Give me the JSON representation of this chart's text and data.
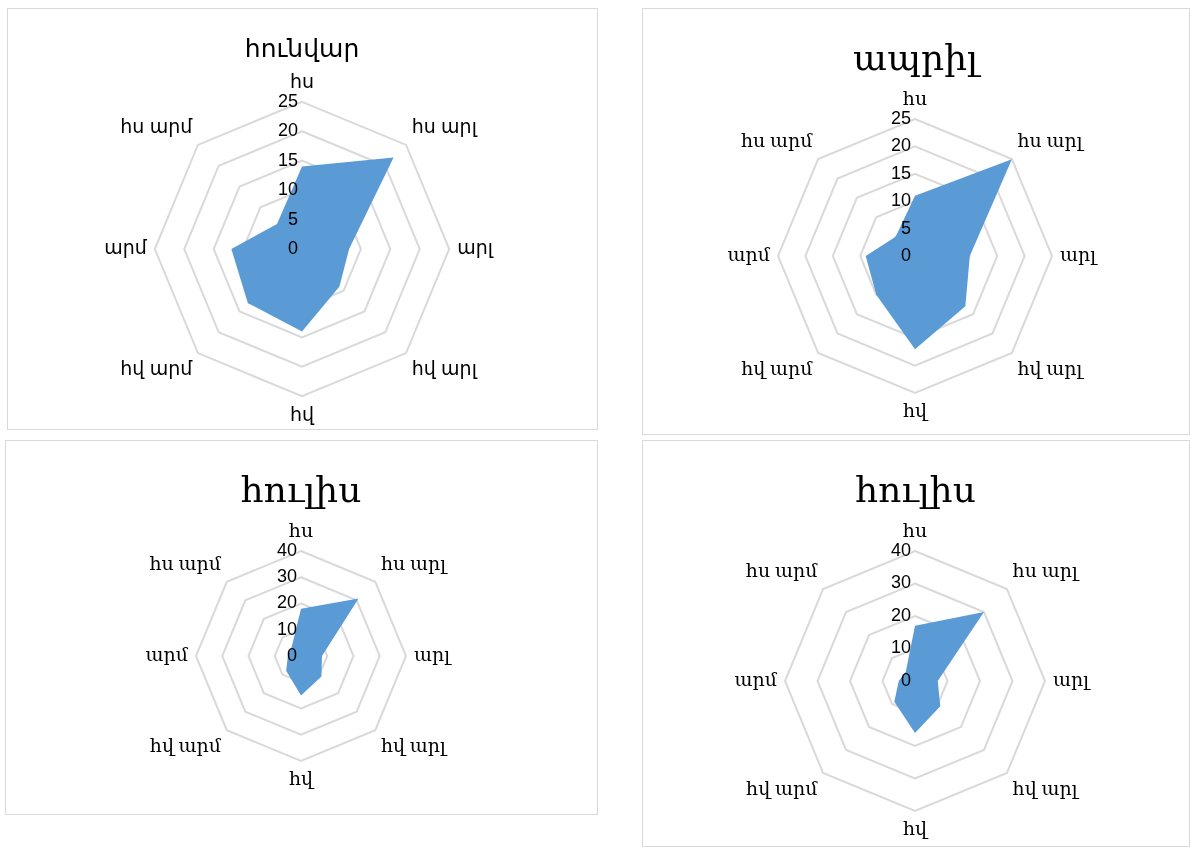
{
  "chart_data": [
    {
      "type": "radar",
      "title": "հունվար",
      "categories": [
        "հս",
        "հս արլ",
        "արլ",
        "հվ արլ",
        "հվ",
        "հվ արմ",
        "արմ",
        "հս արմ"
      ],
      "series": [
        {
          "color": "#5b9bd5",
          "values": [
            14,
            22,
            8,
            9,
            14,
            13,
            12,
            6
          ]
        }
      ],
      "ylim": [
        0,
        25
      ],
      "yticks": [
        0,
        5,
        10,
        15,
        20,
        25
      ],
      "grid": true
    },
    {
      "type": "radar",
      "title": "ապրիլ",
      "categories": [
        "հս",
        "հս արլ",
        "արլ",
        "հվ արլ",
        "հվ",
        "հվ արմ",
        "արմ",
        "հս արմ"
      ],
      "series": [
        {
          "color": "#5b9bd5",
          "values": [
            11,
            25,
            10,
            13,
            17,
            10,
            9,
            5
          ]
        }
      ],
      "ylim": [
        0,
        25
      ],
      "yticks": [
        0,
        5,
        10,
        15,
        20,
        25
      ],
      "grid": true
    },
    {
      "type": "radar",
      "title": "հուլիս",
      "categories": [
        "հս",
        "հս արլ",
        "արլ",
        "հվ արլ",
        "հվ",
        "հվ արմ",
        "արմ",
        "հս արմ"
      ],
      "series": [
        {
          "color": "#5b9bd5",
          "values": [
            18,
            31,
            8,
            11,
            15,
            8,
            5,
            5
          ]
        }
      ],
      "ylim": [
        0,
        40
      ],
      "yticks": [
        0,
        10,
        20,
        30,
        40
      ],
      "grid": true
    },
    {
      "type": "radar",
      "title": "հուլիս",
      "categories": [
        "հս",
        "հս արլ",
        "արլ",
        "հվ արլ",
        "հվ",
        "հվ արմ",
        "արմ",
        "հս արմ"
      ],
      "series": [
        {
          "color": "#5b9bd5",
          "values": [
            17,
            30,
            7,
            11,
            16,
            9,
            5,
            4
          ]
        }
      ],
      "ylim": [
        0,
        40
      ],
      "yticks": [
        0,
        10,
        20,
        30,
        40
      ],
      "grid": true
    }
  ]
}
